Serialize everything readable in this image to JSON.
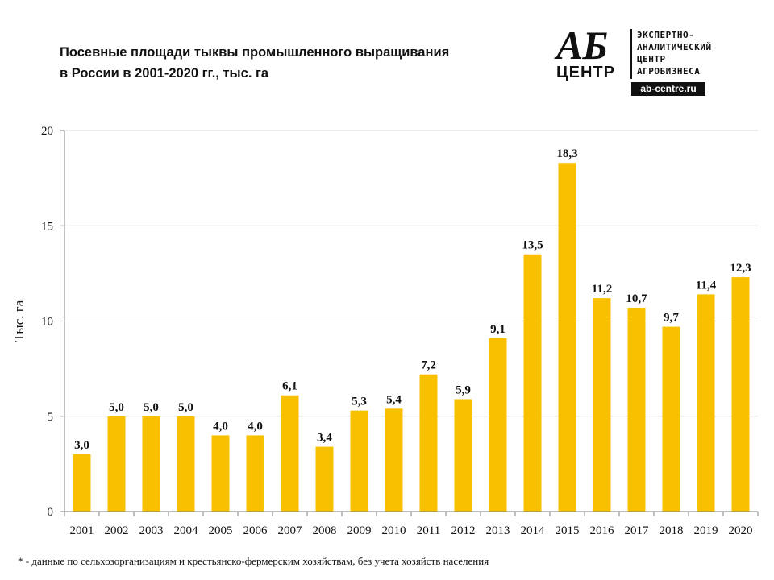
{
  "title": {
    "line1": "Посевные площади тыквы промышленного  выращивания",
    "line2": "в России в 2001-2020 гг., тыс. га"
  },
  "logo": {
    "mark_top": "АБ",
    "mark_bottom": "ЦЕНТР",
    "text_lines": [
      "ЭКСПЕРТНО-",
      "АНАЛИТИЧЕСКИЙ",
      "ЦЕНТР",
      "АГРОБИЗНЕСА"
    ],
    "url": "ab-centre.ru"
  },
  "footnote": "* - данные по сельхозорганизациям и крестьянско-фермерским  хозяйствам, без учета хозяйств населения",
  "colors": {
    "bar": "#F9C000",
    "grid": "#D9D9D9",
    "axis": "#808080",
    "text": "#111111"
  },
  "chart_data": {
    "type": "bar",
    "title": "Посевные площади тыквы промышленного  выращивания в России в 2001-2020 гг., тыс. га",
    "xlabel": "",
    "ylabel": "Тыс. га",
    "ylim": [
      0,
      20
    ],
    "yticks": [
      0,
      5,
      10,
      15,
      20
    ],
    "grid": true,
    "legend": "none",
    "categories": [
      "2001",
      "2002",
      "2003",
      "2004",
      "2005",
      "2006",
      "2007",
      "2008",
      "2009",
      "2010",
      "2011",
      "2012",
      "2013",
      "2014",
      "2015",
      "2016",
      "2017",
      "2018",
      "2019",
      "2020"
    ],
    "values": [
      3.0,
      5.0,
      5.0,
      5.0,
      4.0,
      4.0,
      6.1,
      3.4,
      5.3,
      5.4,
      7.2,
      5.9,
      9.1,
      13.5,
      18.3,
      11.2,
      10.7,
      9.7,
      11.4,
      12.3
    ],
    "data_labels": [
      "3,0",
      "5,0",
      "5,0",
      "5,0",
      "4,0",
      "4,0",
      "6,1",
      "3,4",
      "5,3",
      "5,4",
      "7,2",
      "5,9",
      "9,1",
      "13,5",
      "18,3",
      "11,2",
      "10,7",
      "9,7",
      "11,4",
      "12,3"
    ]
  }
}
